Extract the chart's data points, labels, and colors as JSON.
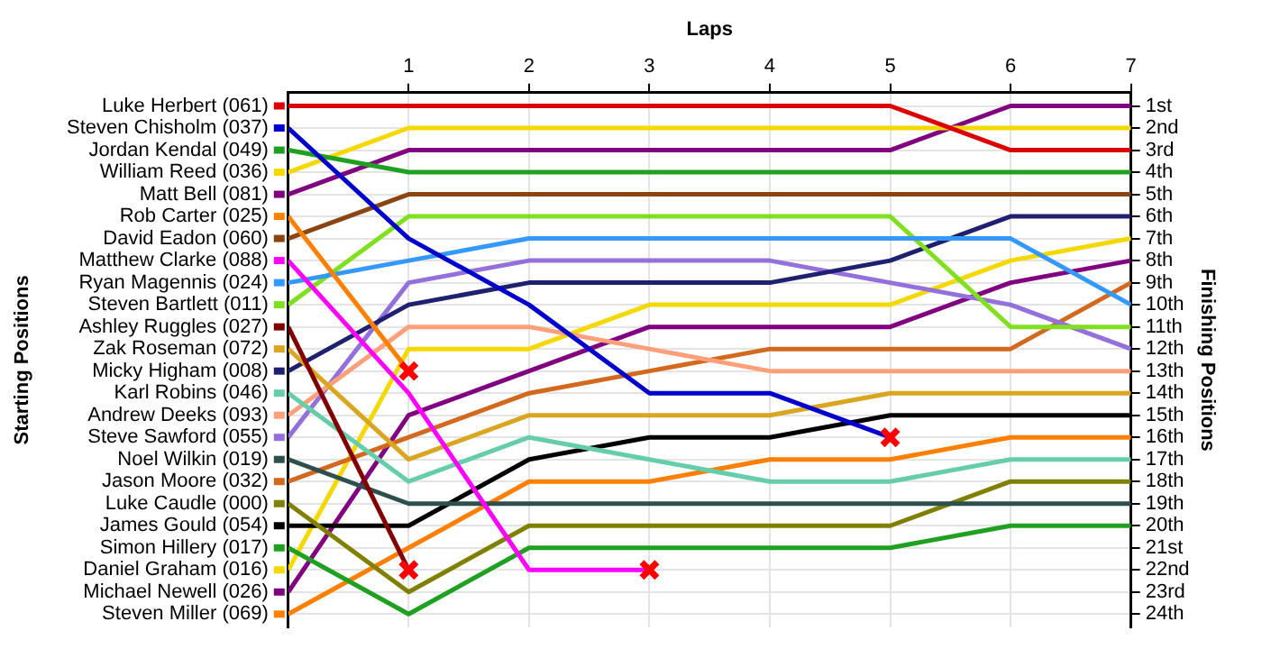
{
  "chart_data": {
    "type": "line",
    "xlabel": "Laps",
    "ylabel": "Finishing Positions",
    "annotations": [
      "Starting Positions"
    ],
    "x": [
      0,
      1,
      2,
      3,
      4,
      5,
      6,
      7
    ],
    "xlim": [
      0,
      7
    ],
    "xticks": [
      1,
      2,
      3,
      4,
      5,
      6,
      7
    ],
    "ylim": [
      24.6,
      0.4
    ],
    "yticks": [
      {
        "value": 1,
        "label": "1st"
      },
      {
        "value": 2,
        "label": "2nd"
      },
      {
        "value": 3,
        "label": "3rd"
      },
      {
        "value": 4,
        "label": "4th"
      },
      {
        "value": 5,
        "label": "5th"
      },
      {
        "value": 6,
        "label": "6th"
      },
      {
        "value": 7,
        "label": "7th"
      },
      {
        "value": 8,
        "label": "8th"
      },
      {
        "value": 9,
        "label": "9th"
      },
      {
        "value": 10,
        "label": "10th"
      },
      {
        "value": 11,
        "label": "11th"
      },
      {
        "value": 12,
        "label": "12th"
      },
      {
        "value": 13,
        "label": "13th"
      },
      {
        "value": 14,
        "label": "14th"
      },
      {
        "value": 15,
        "label": "15th"
      },
      {
        "value": 16,
        "label": "16th"
      },
      {
        "value": 17,
        "label": "17th"
      },
      {
        "value": 18,
        "label": "18th"
      },
      {
        "value": 19,
        "label": "19th"
      },
      {
        "value": 20,
        "label": "20th"
      },
      {
        "value": 21,
        "label": "21st"
      },
      {
        "value": 22,
        "label": "22nd"
      },
      {
        "value": 23,
        "label": "23rd"
      },
      {
        "value": 24,
        "label": "24th"
      }
    ],
    "grid": true,
    "legend": "left",
    "marker": "none",
    "line_style": "solid",
    "series": [
      {
        "name": "Luke Herbert (061)",
        "color": "#dd0000",
        "values": [
          1,
          1,
          1,
          1,
          1,
          1,
          3,
          3
        ]
      },
      {
        "name": "Steven Chisholm (037)",
        "color": "#0000cc",
        "values": [
          2,
          7,
          10,
          14,
          14,
          16,
          null,
          null
        ]
      },
      {
        "name": "Jordan Kendal (049)",
        "color": "#20a020",
        "values": [
          3,
          4,
          4,
          4,
          4,
          4,
          4,
          4
        ]
      },
      {
        "name": "William Reed (036)",
        "color": "#f5d800",
        "values": [
          4,
          2,
          2,
          2,
          2,
          2,
          2,
          2
        ]
      },
      {
        "name": "Matt Bell (081)",
        "color": "#800080",
        "values": [
          5,
          3,
          3,
          3,
          3,
          3,
          1,
          1
        ]
      },
      {
        "name": "Rob Carter (025)",
        "color": "#ff8000",
        "values": [
          6,
          13,
          null,
          null,
          null,
          null,
          null,
          null
        ]
      },
      {
        "name": "David Eadon (060)",
        "color": "#8b4513",
        "values": [
          7,
          5,
          5,
          5,
          5,
          5,
          5,
          5
        ]
      },
      {
        "name": "Matthew Clarke (088)",
        "color": "#ff00ff",
        "values": [
          8,
          14,
          22,
          22,
          null,
          null,
          null,
          null
        ]
      },
      {
        "name": "Ryan Magennis (024)",
        "color": "#3399ff",
        "values": [
          9,
          8,
          7,
          7,
          7,
          7,
          7,
          10
        ]
      },
      {
        "name": "Steven Bartlett (011)",
        "color": "#80e020",
        "values": [
          10,
          6,
          6,
          6,
          6,
          6,
          11,
          11
        ]
      },
      {
        "name": "Ashley Ruggles (027)",
        "color": "#800000",
        "values": [
          11,
          22,
          null,
          null,
          null,
          null,
          null,
          null
        ]
      },
      {
        "name": "Zak Roseman (072)",
        "color": "#daa520",
        "values": [
          12,
          17,
          15,
          15,
          15,
          14,
          14,
          14
        ]
      },
      {
        "name": "Micky Higham (008)",
        "color": "#202070",
        "values": [
          13,
          10,
          9,
          9,
          9,
          8,
          6,
          6
        ]
      },
      {
        "name": "Karl Robins (046)",
        "color": "#66cdaa",
        "values": [
          14,
          18,
          16,
          17,
          18,
          18,
          17,
          17
        ]
      },
      {
        "name": "Andrew Deeks (093)",
        "color": "#ffa07a",
        "values": [
          15,
          11,
          11,
          12,
          13,
          13,
          13,
          13
        ]
      },
      {
        "name": "Steve Sawford (055)",
        "color": "#9370db",
        "values": [
          16,
          9,
          8,
          8,
          8,
          9,
          10,
          12
        ]
      },
      {
        "name": "Noel Wilkin (019)",
        "color": "#2f4f4f",
        "values": [
          17,
          19,
          19,
          19,
          19,
          19,
          19,
          19
        ]
      },
      {
        "name": "Jason Moore (032)",
        "color": "#d2691e",
        "values": [
          18,
          16,
          14,
          13,
          12,
          12,
          12,
          9
        ]
      },
      {
        "name": "Luke Caudle (000)",
        "color": "#808000",
        "values": [
          19,
          23,
          20,
          20,
          20,
          20,
          18,
          18
        ]
      },
      {
        "name": "James Gould (054)",
        "color": "#000000",
        "values": [
          20,
          20,
          17,
          16,
          16,
          15,
          15,
          15
        ]
      },
      {
        "name": "Simon Hillery (017)",
        "color": "#20a020",
        "values": [
          21,
          24,
          21,
          21,
          21,
          21,
          20,
          20
        ]
      },
      {
        "name": "Daniel Graham (016)",
        "color": "#f5d800",
        "values": [
          22,
          12,
          12,
          10,
          10,
          10,
          8,
          7
        ]
      },
      {
        "name": "Michael Newell (026)",
        "color": "#800080",
        "values": [
          23,
          15,
          13,
          11,
          11,
          11,
          9,
          8
        ]
      },
      {
        "name": "Steven Miller (069)",
        "color": "#ff7f00",
        "values": [
          24,
          21,
          18,
          18,
          17,
          17,
          16,
          16
        ]
      },
      {
        "type": "scatter",
        "marker": "cross",
        "color": "#ff0000",
        "x": [
          1,
          1,
          3,
          5
        ],
        "values": [
          13,
          22,
          22,
          16
        ]
      }
    ]
  }
}
